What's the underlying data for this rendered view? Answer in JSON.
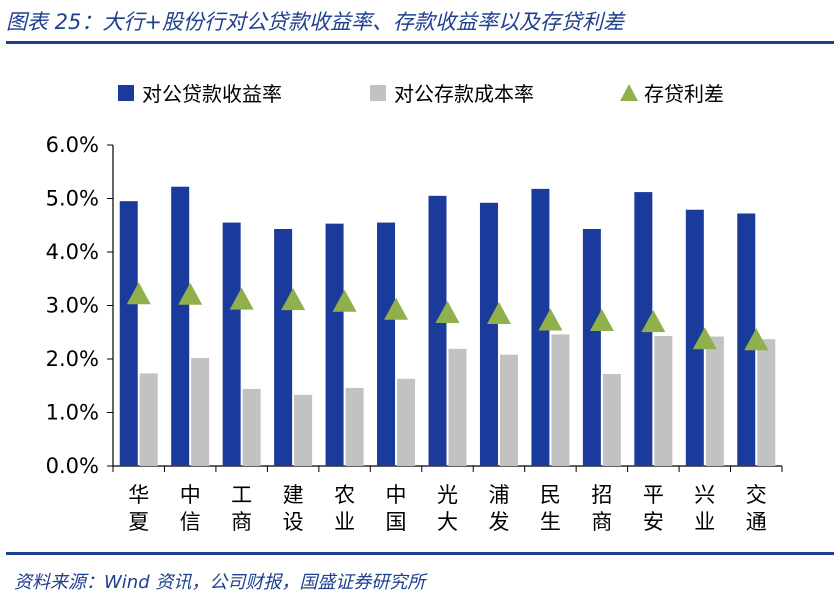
{
  "title": "图表 25：大行+股份行对公贷款收益率、存款收益率以及存贷利差",
  "source": "资料来源：Wind 资讯，公司财报，国盛证券研究所",
  "colors": {
    "loan_yield": "#1a3a9c",
    "deposit_cost": "#c2c2c2",
    "spread": "#8fb04a",
    "accent": "#1f3f8f"
  },
  "chart_data": {
    "type": "bar",
    "categories": [
      "华夏",
      "中信",
      "工商",
      "建设",
      "农业",
      "中国",
      "光大",
      "浦发",
      "民生",
      "招商",
      "平安",
      "兴业",
      "交通"
    ],
    "series": [
      {
        "name": "对公贷款收益率",
        "kind": "bar",
        "values": [
          4.95,
          5.22,
          4.55,
          4.43,
          4.53,
          4.55,
          5.05,
          4.92,
          5.18,
          4.43,
          5.12,
          4.79,
          4.72
        ]
      },
      {
        "name": "对公存款成本率",
        "kind": "bar",
        "values": [
          1.73,
          2.02,
          1.44,
          1.33,
          1.46,
          1.63,
          2.19,
          2.08,
          2.46,
          1.72,
          2.43,
          2.42,
          2.37
        ]
      },
      {
        "name": "存贷利差",
        "kind": "triangle",
        "values": [
          3.21,
          3.2,
          3.11,
          3.1,
          3.07,
          2.92,
          2.86,
          2.84,
          2.72,
          2.71,
          2.69,
          2.37,
          2.35
        ]
      }
    ],
    "ylim": [
      0,
      6
    ],
    "yticks": [
      "0.0%",
      "1.0%",
      "2.0%",
      "3.0%",
      "4.0%",
      "5.0%",
      "6.0%"
    ],
    "legend_position": "top",
    "grid": false
  }
}
